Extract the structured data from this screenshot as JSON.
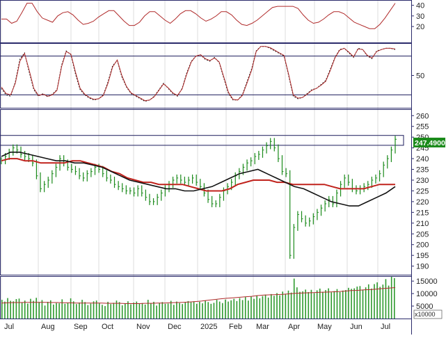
{
  "chart_data": [
    {
      "type": "line",
      "panel": "rsi",
      "yticks": [
        20,
        30,
        40
      ],
      "ylim": [
        5,
        45
      ],
      "series": [
        {
          "values": [
            27,
            27,
            23,
            25,
            33,
            42,
            42,
            34,
            28,
            26,
            24,
            30,
            33,
            34,
            31,
            26,
            22,
            23,
            25,
            29,
            32,
            35,
            35,
            30,
            25,
            21,
            21,
            24,
            30,
            34,
            34,
            30,
            26,
            23,
            27,
            32,
            35,
            35,
            32,
            28,
            25,
            27,
            30,
            34,
            34,
            31,
            26,
            22,
            21,
            23,
            26,
            30,
            34,
            38,
            39,
            39,
            39,
            39,
            37,
            31,
            26,
            23,
            24,
            27,
            31,
            34,
            34,
            32,
            28,
            24,
            22,
            20,
            18,
            18,
            22,
            28,
            35,
            42
          ],
          "color": "#b02a2a"
        }
      ]
    },
    {
      "type": "line",
      "panel": "stochastic",
      "yticks": [
        50
      ],
      "ylim": [
        0,
        100
      ],
      "hlines": [
        80,
        20
      ],
      "series": [
        {
          "values": [
            30,
            20,
            18,
            40,
            75,
            85,
            55,
            28,
            18,
            22,
            17,
            21,
            28,
            66,
            88,
            82,
            52,
            28,
            20,
            15,
            12,
            14,
            20,
            40,
            65,
            73,
            48,
            32,
            22,
            18,
            14,
            10,
            12,
            18,
            28,
            38,
            30,
            22,
            18,
            30,
            54,
            72,
            80,
            82,
            75,
            72,
            78,
            70,
            46,
            22,
            12,
            12,
            20,
            40,
            60,
            88,
            95,
            95,
            92,
            88,
            84,
            80,
            50,
            18,
            14,
            16,
            22,
            28,
            30,
            36,
            42,
            60,
            78,
            90,
            92,
            85,
            78,
            92,
            90,
            80,
            76,
            88,
            90,
            92,
            92,
            90
          ],
          "color": "#111111",
          "style": "dashed"
        },
        {
          "values": [
            32,
            22,
            20,
            38,
            72,
            84,
            58,
            30,
            19,
            21,
            18,
            20,
            27,
            64,
            87,
            83,
            55,
            30,
            21,
            16,
            13,
            14,
            19,
            38,
            63,
            74,
            50,
            33,
            23,
            19,
            15,
            11,
            12,
            17,
            27,
            37,
            31,
            23,
            19,
            29,
            52,
            71,
            80,
            82,
            76,
            73,
            77,
            71,
            48,
            24,
            13,
            12,
            19,
            38,
            58,
            87,
            95,
            95,
            93,
            89,
            85,
            81,
            52,
            20,
            15,
            16,
            21,
            27,
            30,
            35,
            41,
            58,
            77,
            89,
            92,
            86,
            79,
            91,
            90,
            81,
            77,
            87,
            90,
            92,
            92,
            91
          ],
          "color": "#b02a2a"
        }
      ]
    },
    {
      "type": "line",
      "panel": "price",
      "yticks": [
        190,
        195,
        200,
        205,
        210,
        215,
        220,
        225,
        230,
        235,
        240,
        245,
        250,
        255,
        260
      ],
      "ylim": [
        186,
        263
      ],
      "last_price": "247.4900",
      "x_labels": [
        "Jul",
        "Aug",
        "Sep",
        "Oct",
        "Nov",
        "Dec",
        "2025",
        "Feb",
        "Mar",
        "Apr",
        "May",
        "Jun",
        "Jul"
      ],
      "series": [
        {
          "name": "close",
          "values": [
            239,
            241,
            243,
            245,
            244,
            242,
            241,
            240,
            238,
            232,
            226,
            228,
            230,
            233,
            236,
            240,
            238,
            236,
            235,
            234,
            232,
            231,
            233,
            234,
            236,
            235,
            233,
            231,
            230,
            228,
            227,
            226,
            225,
            225,
            224,
            226,
            224,
            222,
            220,
            220,
            222,
            224,
            226,
            228,
            230,
            231,
            230,
            229,
            230,
            231,
            229,
            227,
            224,
            221,
            219,
            219,
            222,
            225,
            227,
            229,
            232,
            234,
            236,
            238,
            239,
            241,
            242,
            244,
            246,
            248,
            245,
            240,
            234,
            233,
            195,
            208,
            214,
            212,
            210,
            211,
            213,
            215,
            217,
            219,
            221,
            219,
            224,
            228,
            231,
            229,
            226,
            225,
            226,
            227,
            228,
            230,
            231,
            233,
            237,
            240,
            244,
            249
          ],
          "color": "#1a8a1a"
        },
        {
          "name": "ma-long",
          "values": [
            239,
            240,
            240,
            239,
            239,
            238,
            238,
            238,
            238,
            239,
            239,
            238,
            237,
            236,
            234,
            233,
            231,
            230,
            229,
            229,
            228,
            228,
            228,
            228,
            227,
            226,
            225,
            225,
            225,
            226,
            228,
            229,
            230,
            230,
            230,
            229,
            229,
            228,
            228,
            228,
            228,
            228,
            227,
            226,
            226,
            226,
            226,
            227,
            228,
            228,
            228
          ],
          "color": "#c0221c"
        },
        {
          "name": "ma-short",
          "values": [
            241,
            243,
            243,
            242,
            241,
            240,
            239,
            239,
            238,
            238,
            237,
            236,
            234,
            232,
            230,
            229,
            228,
            227,
            226,
            226,
            225,
            225,
            226,
            227,
            229,
            231,
            233,
            234,
            235,
            233,
            231,
            229,
            227,
            226,
            224,
            222,
            220,
            219,
            218,
            218,
            220,
            222,
            224,
            227
          ],
          "color": "#111111"
        }
      ]
    },
    {
      "type": "bar",
      "panel": "volume",
      "yticks": [
        5000,
        10000,
        15000
      ],
      "ylim": [
        0,
        17000
      ],
      "unit_label": "x10000",
      "values": [
        7500,
        6800,
        8200,
        7100,
        6900,
        7800,
        8000,
        6500,
        7200,
        6000,
        7900,
        7100,
        8300,
        6600,
        7400,
        5200,
        6700,
        7300,
        5600,
        6200,
        6100,
        7700,
        5900,
        6300,
        8100,
        6900,
        5800,
        6400,
        7500,
        6600,
        5400,
        6000,
        6900,
        7200,
        6100,
        5500,
        5000,
        6700,
        5800,
        6300,
        7200,
        6600,
        5300,
        6100,
        6900,
        5700,
        6400,
        6800,
        5900,
        6200,
        5600,
        7500,
        6100,
        6700,
        5200,
        6300,
        6600,
        5900,
        6000,
        7100,
        5500,
        6800,
        6200,
        5800,
        6400,
        7000,
        6500,
        6900,
        5900,
        6700,
        6100,
        7200,
        6600,
        5900,
        6300,
        7500,
        6800,
        6200,
        7600,
        6800,
        7300,
        7900,
        7000,
        8200,
        7400,
        8600,
        7200,
        8800,
        7900,
        9300,
        8100,
        9000,
        9600,
        8400,
        9800,
        9100,
        10200,
        9300,
        10800,
        9900,
        11200,
        10400,
        16000,
        12500,
        10700,
        10900,
        11600,
        10600,
        11500,
        10200,
        11300,
        12000,
        10700,
        11400,
        12100,
        10500,
        11000,
        11800,
        10600,
        11200,
        11400,
        12300,
        11900,
        12100,
        12800,
        13000,
        11600,
        12500,
        13700,
        12000,
        13800,
        14500,
        12700,
        13600,
        15800,
        13200,
        17000,
        16200
      ],
      "ma_values": [
        6200,
        6300,
        6400,
        6400,
        6500,
        6500,
        6500,
        6500,
        6400,
        6400,
        6300,
        6300,
        6200,
        6200,
        6200,
        6200,
        6200,
        6100,
        6100,
        6100,
        6000,
        6000,
        6000,
        6100,
        6100,
        6200,
        6200,
        6300,
        6400,
        6500,
        6600,
        6800,
        7000,
        7300,
        7600,
        7900,
        8100,
        8300,
        8500,
        8700,
        8900,
        9200,
        9400,
        9500,
        9600,
        9700,
        9900,
        10100,
        10200,
        10300,
        10400,
        10500,
        10600,
        10700,
        10800,
        11000,
        11200,
        11300,
        11500,
        11600,
        11800,
        12000,
        12200,
        12400
      ],
      "bar_color": "#2e9a2e",
      "ma_color": "#b02a2a"
    }
  ]
}
